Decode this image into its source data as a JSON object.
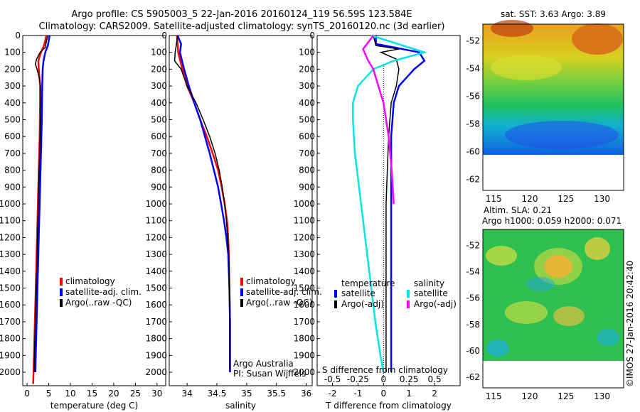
{
  "title_line1": "Argo profile: CS 5905003_5 22-Jan-2016 20160124_119 56.59S 123.584E",
  "title_line2": "Climatology: CARS2009. Satellite-adjusted climatology: synTS_20160120.nc (3d earlier)",
  "depth_ticks": [
    0,
    100,
    200,
    300,
    400,
    500,
    600,
    700,
    800,
    900,
    1000,
    1100,
    1200,
    1300,
    1400,
    1500,
    1600,
    1700,
    1800,
    1900,
    2000
  ],
  "chart_data": [
    {
      "type": "line",
      "xlabel": "temperature (deg C)",
      "ylabel": "",
      "xlim": [
        -1,
        32
      ],
      "ylim": [
        2080,
        0
      ],
      "x_ticks": [
        0,
        5,
        10,
        15,
        20,
        25,
        30
      ],
      "legend": [
        {
          "label": "climatology",
          "color": "#ff0000"
        },
        {
          "label": "satellite-adj. clim.",
          "color": "#0000ff"
        },
        {
          "label": "Argo(..raw -QC)",
          "color": "#000000"
        }
      ],
      "legend_placement": "lower-middle",
      "series": [
        {
          "key": "clim",
          "color": "#ff0000",
          "width": 2.5,
          "points": [
            [
              4.4,
              0
            ],
            [
              4.2,
              30
            ],
            [
              3.9,
              60
            ],
            [
              3.2,
              100
            ],
            [
              2.6,
              150
            ],
            [
              2.7,
              200
            ],
            [
              3.0,
              300
            ],
            [
              3.0,
              400
            ],
            [
              2.9,
              600
            ],
            [
              2.7,
              800
            ],
            [
              2.5,
              1000
            ],
            [
              2.3,
              1200
            ],
            [
              2.1,
              1400
            ],
            [
              1.9,
              1600
            ],
            [
              1.7,
              1800
            ],
            [
              1.5,
              2000
            ],
            [
              1.4,
              2070
            ]
          ]
        },
        {
          "key": "sat",
          "color": "#0000ff",
          "width": 2.5,
          "points": [
            [
              5.2,
              0
            ],
            [
              5.0,
              30
            ],
            [
              4.8,
              60
            ],
            [
              4.2,
              100
            ],
            [
              3.8,
              150
            ],
            [
              3.6,
              200
            ],
            [
              3.5,
              300
            ],
            [
              3.4,
              500
            ],
            [
              3.2,
              700
            ],
            [
              3.0,
              900
            ],
            [
              2.8,
              1100
            ],
            [
              2.6,
              1300
            ],
            [
              2.4,
              1500
            ],
            [
              2.2,
              1700
            ],
            [
              2.0,
              1900
            ],
            [
              1.9,
              2000
            ]
          ]
        },
        {
          "key": "argo",
          "color": "#000000",
          "width": 1.5,
          "points": [
            [
              4.8,
              0
            ],
            [
              4.5,
              30
            ],
            [
              4.2,
              70
            ],
            [
              3.0,
              100
            ],
            [
              2.2,
              140
            ],
            [
              1.9,
              170
            ],
            [
              2.3,
              200
            ],
            [
              2.8,
              250
            ],
            [
              3.1,
              300
            ],
            [
              3.1,
              400
            ],
            [
              3.0,
              600
            ],
            [
              2.8,
              800
            ],
            [
              2.6,
              1000
            ],
            [
              2.4,
              1200
            ],
            [
              2.2,
              1400
            ],
            [
              2.0,
              1600
            ],
            [
              1.8,
              1800
            ],
            [
              1.6,
              2000
            ]
          ]
        }
      ]
    },
    {
      "type": "line",
      "xlabel": "salinity",
      "xlim": [
        33.7,
        36.1
      ],
      "ylim": [
        2080,
        0
      ],
      "x_ticks": [
        34,
        34.5,
        35,
        35.5,
        36
      ],
      "x_tick_labels": [
        "34",
        "34.5",
        "35",
        "35.5",
        "36"
      ],
      "legend": [
        {
          "label": "climatology",
          "color": "#ff0000"
        },
        {
          "label": "satellite-adj. clim.",
          "color": "#0000ff"
        },
        {
          "label": "Argo(..raw -QC)",
          "color": "#000000"
        }
      ],
      "legend_placement": "lower-right",
      "annotation": [
        "Argo Australia",
        "PI: Susan Wijffels"
      ],
      "series": [
        {
          "key": "clim",
          "color": "#ff0000",
          "width": 2.5,
          "points": [
            [
              33.83,
              0
            ],
            [
              33.85,
              100
            ],
            [
              33.92,
              200
            ],
            [
              34.0,
              300
            ],
            [
              34.12,
              400
            ],
            [
              34.22,
              500
            ],
            [
              34.33,
              600
            ],
            [
              34.43,
              700
            ],
            [
              34.52,
              800
            ],
            [
              34.58,
              900
            ],
            [
              34.63,
              1000
            ],
            [
              34.67,
              1100
            ],
            [
              34.69,
              1200
            ],
            [
              34.7,
              1300
            ],
            [
              34.71,
              1500
            ],
            [
              34.72,
              1700
            ],
            [
              34.72,
              2000
            ]
          ]
        },
        {
          "key": "sat",
          "color": "#0000ff",
          "width": 2.5,
          "points": [
            [
              33.84,
              0
            ],
            [
              33.9,
              50
            ],
            [
              33.88,
              100
            ],
            [
              33.95,
              200
            ],
            [
              34.03,
              300
            ],
            [
              34.12,
              400
            ],
            [
              34.22,
              500
            ],
            [
              34.3,
              600
            ],
            [
              34.38,
              700
            ],
            [
              34.45,
              800
            ],
            [
              34.52,
              900
            ],
            [
              34.57,
              1000
            ],
            [
              34.62,
              1100
            ],
            [
              34.66,
              1200
            ],
            [
              34.69,
              1300
            ],
            [
              34.71,
              1500
            ],
            [
              34.72,
              1700
            ],
            [
              34.72,
              2000
            ]
          ]
        },
        {
          "key": "argo",
          "color": "#000000",
          "width": 1.5,
          "points": [
            [
              33.84,
              0
            ],
            [
              33.8,
              100
            ],
            [
              33.79,
              150
            ],
            [
              33.9,
              200
            ],
            [
              34.0,
              300
            ],
            [
              34.15,
              400
            ],
            [
              34.27,
              500
            ],
            [
              34.38,
              600
            ],
            [
              34.47,
              700
            ],
            [
              34.54,
              800
            ],
            [
              34.59,
              900
            ],
            [
              34.63,
              1000
            ],
            [
              34.66,
              1100
            ],
            [
              34.68,
              1200
            ],
            [
              34.7,
              1300
            ],
            [
              34.71,
              1500
            ],
            [
              34.72,
              1700
            ],
            [
              34.72,
              2000
            ]
          ]
        }
      ]
    },
    {
      "type": "line",
      "xlabel": "T difference from climatology",
      "x2label": "S difference from climatology",
      "xlim": [
        -2.6,
        3.0
      ],
      "ylim": [
        2080,
        0
      ],
      "x_ticks": [
        -2,
        -1,
        0,
        1,
        2
      ],
      "s_ticks": [
        -0.5,
        -0.25,
        0,
        0.25,
        0.5
      ],
      "s_tick_labels": [
        "-0.5",
        "-0.25",
        "0",
        "0.25",
        "0.5"
      ],
      "legend_temperature": {
        "title": "temperature",
        "items": [
          {
            "label": "satellite",
            "color": "#0000ff"
          },
          {
            "label": "Argo(-adj)",
            "color": "#000000"
          }
        ]
      },
      "legend_salinity": {
        "title": "salinity",
        "items": [
          {
            "label": "satellite",
            "color": "#00e5e5"
          },
          {
            "label": "Argo(-adj)",
            "color": "#ff00ff"
          }
        ]
      },
      "series": [
        {
          "key": "t_sat",
          "color": "#0000ff",
          "width": 2.5,
          "points": [
            [
              -0.3,
              0
            ],
            [
              -0.3,
              50
            ],
            [
              0.4,
              70
            ],
            [
              1.4,
              100
            ],
            [
              1.6,
              150
            ],
            [
              1.2,
              200
            ],
            [
              0.9,
              250
            ],
            [
              0.6,
              300
            ],
            [
              0.4,
              400
            ],
            [
              0.3,
              600
            ],
            [
              0.3,
              1000
            ],
            [
              0.3,
              1500
            ],
            [
              0.3,
              2000
            ]
          ]
        },
        {
          "key": "t_argo",
          "color": "#000000",
          "width": 1.5,
          "points": [
            [
              -0.4,
              0
            ],
            [
              -0.3,
              60
            ],
            [
              0.6,
              80
            ],
            [
              -0.1,
              100
            ],
            [
              0.5,
              140
            ],
            [
              0.6,
              200
            ],
            [
              0.5,
              300
            ],
            [
              0.3,
              400
            ],
            [
              0.2,
              600
            ],
            [
              0.1,
              1000
            ],
            [
              0.1,
              1500
            ],
            [
              0.1,
              2000
            ]
          ]
        },
        {
          "key": "s_sat",
          "color": "#00e5e5",
          "width": 2.5,
          "points": [
            [
              -0.12,
              0
            ],
            [
              0.4,
              100
            ],
            [
              0.1,
              150
            ],
            [
              -0.1,
              200
            ],
            [
              -0.25,
              300
            ],
            [
              -0.3,
              400
            ],
            [
              -0.3,
              500
            ],
            [
              -0.28,
              700
            ],
            [
              -0.24,
              900
            ],
            [
              -0.2,
              1100
            ],
            [
              -0.16,
              1300
            ],
            [
              -0.12,
              1500
            ],
            [
              -0.08,
              1700
            ],
            [
              -0.03,
              1900
            ],
            [
              0.0,
              2000
            ]
          ]
        },
        {
          "key": "s_argo",
          "color": "#ff00ff",
          "width": 2.5,
          "points": [
            [
              -0.1,
              0
            ],
            [
              -0.2,
              80
            ],
            [
              -0.15,
              150
            ],
            [
              -0.1,
              200
            ],
            [
              -0.05,
              300
            ],
            [
              0.0,
              400
            ],
            [
              0.05,
              600
            ],
            [
              0.08,
              800
            ],
            [
              0.1,
              1000
            ]
          ]
        }
      ]
    }
  ],
  "map_sst": {
    "title": "sat. SST: 3.63 Argo: 3.89",
    "x_ticks": [
      "115",
      "120",
      "125",
      "130"
    ],
    "y_ticks": [
      "-52",
      "-54",
      "-56",
      "-58",
      "-60",
      "-62"
    ]
  },
  "map_sla": {
    "title_line1": "Altim. SLA: 0.21",
    "title_line2": "Argo h1000: 0.059 h2000: 0.071",
    "x_ticks": [
      "115",
      "120",
      "125",
      "130"
    ],
    "y_ticks": [
      "-52",
      "-54",
      "-56",
      "-58",
      "-60",
      "-62"
    ]
  },
  "credit": "©IMOS 27-Jan-2016 20:42:40"
}
